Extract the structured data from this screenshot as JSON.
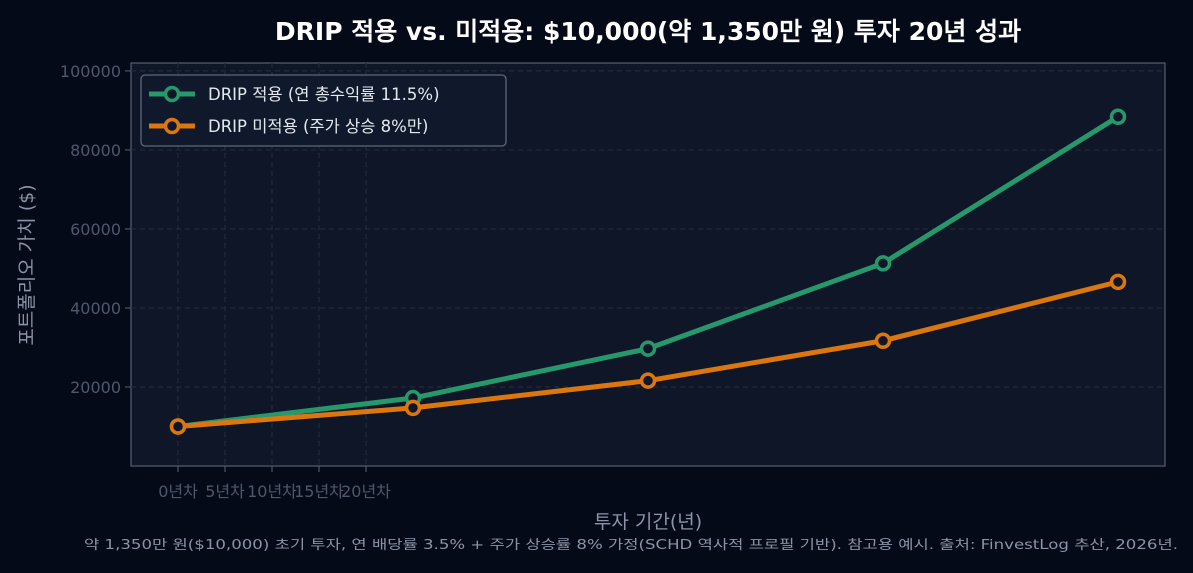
{
  "chart_data": {
    "type": "line",
    "title": "DRIP 적용 vs. 미적용: $10,000(약 1,350만 원) 투자 20년 성과",
    "xlabel": "투자 기간(년)",
    "ylabel": "포트폴리오 가치 ($)",
    "footnote": "약 1,350만 원($10,000) 초기 투자, 연 배당률 3.5% + 주가 상승률 8% 가정(SCHD 역사적 프로필 기반). 참고용 예시. 출처: FinvestLog 추산, 2026년.",
    "x": [
      0,
      5,
      10,
      15,
      20
    ],
    "x_ticks": [
      {
        "value": 0,
        "label": "0년차"
      },
      {
        "value": 1,
        "label": "5년차"
      },
      {
        "value": 2,
        "label": "10년차"
      },
      {
        "value": 3,
        "label": "15년차"
      },
      {
        "value": 4,
        "label": "20년차"
      }
    ],
    "ylim": [
      0,
      102000
    ],
    "y_ticks": [
      20000,
      40000,
      60000,
      80000,
      100000
    ],
    "grid": true,
    "legend_position": "top-left",
    "series": [
      {
        "name": "DRIP 적용 (연 총수익률 11.5%)",
        "color": "#27986b",
        "values": [
          10000,
          17200,
          29700,
          51300,
          88400
        ]
      },
      {
        "name": "DRIP 미적용 (주가 상승 8%만)",
        "color": "#db770e",
        "values": [
          10000,
          14700,
          21600,
          31700,
          46600
        ]
      }
    ]
  },
  "colors": {
    "page_background": "#050a18",
    "plot_background": "#0e1627",
    "axis": "#4c5566",
    "grid": "#222b3b",
    "tick_text": "#4e586a",
    "label_text": "#8a94a6"
  }
}
